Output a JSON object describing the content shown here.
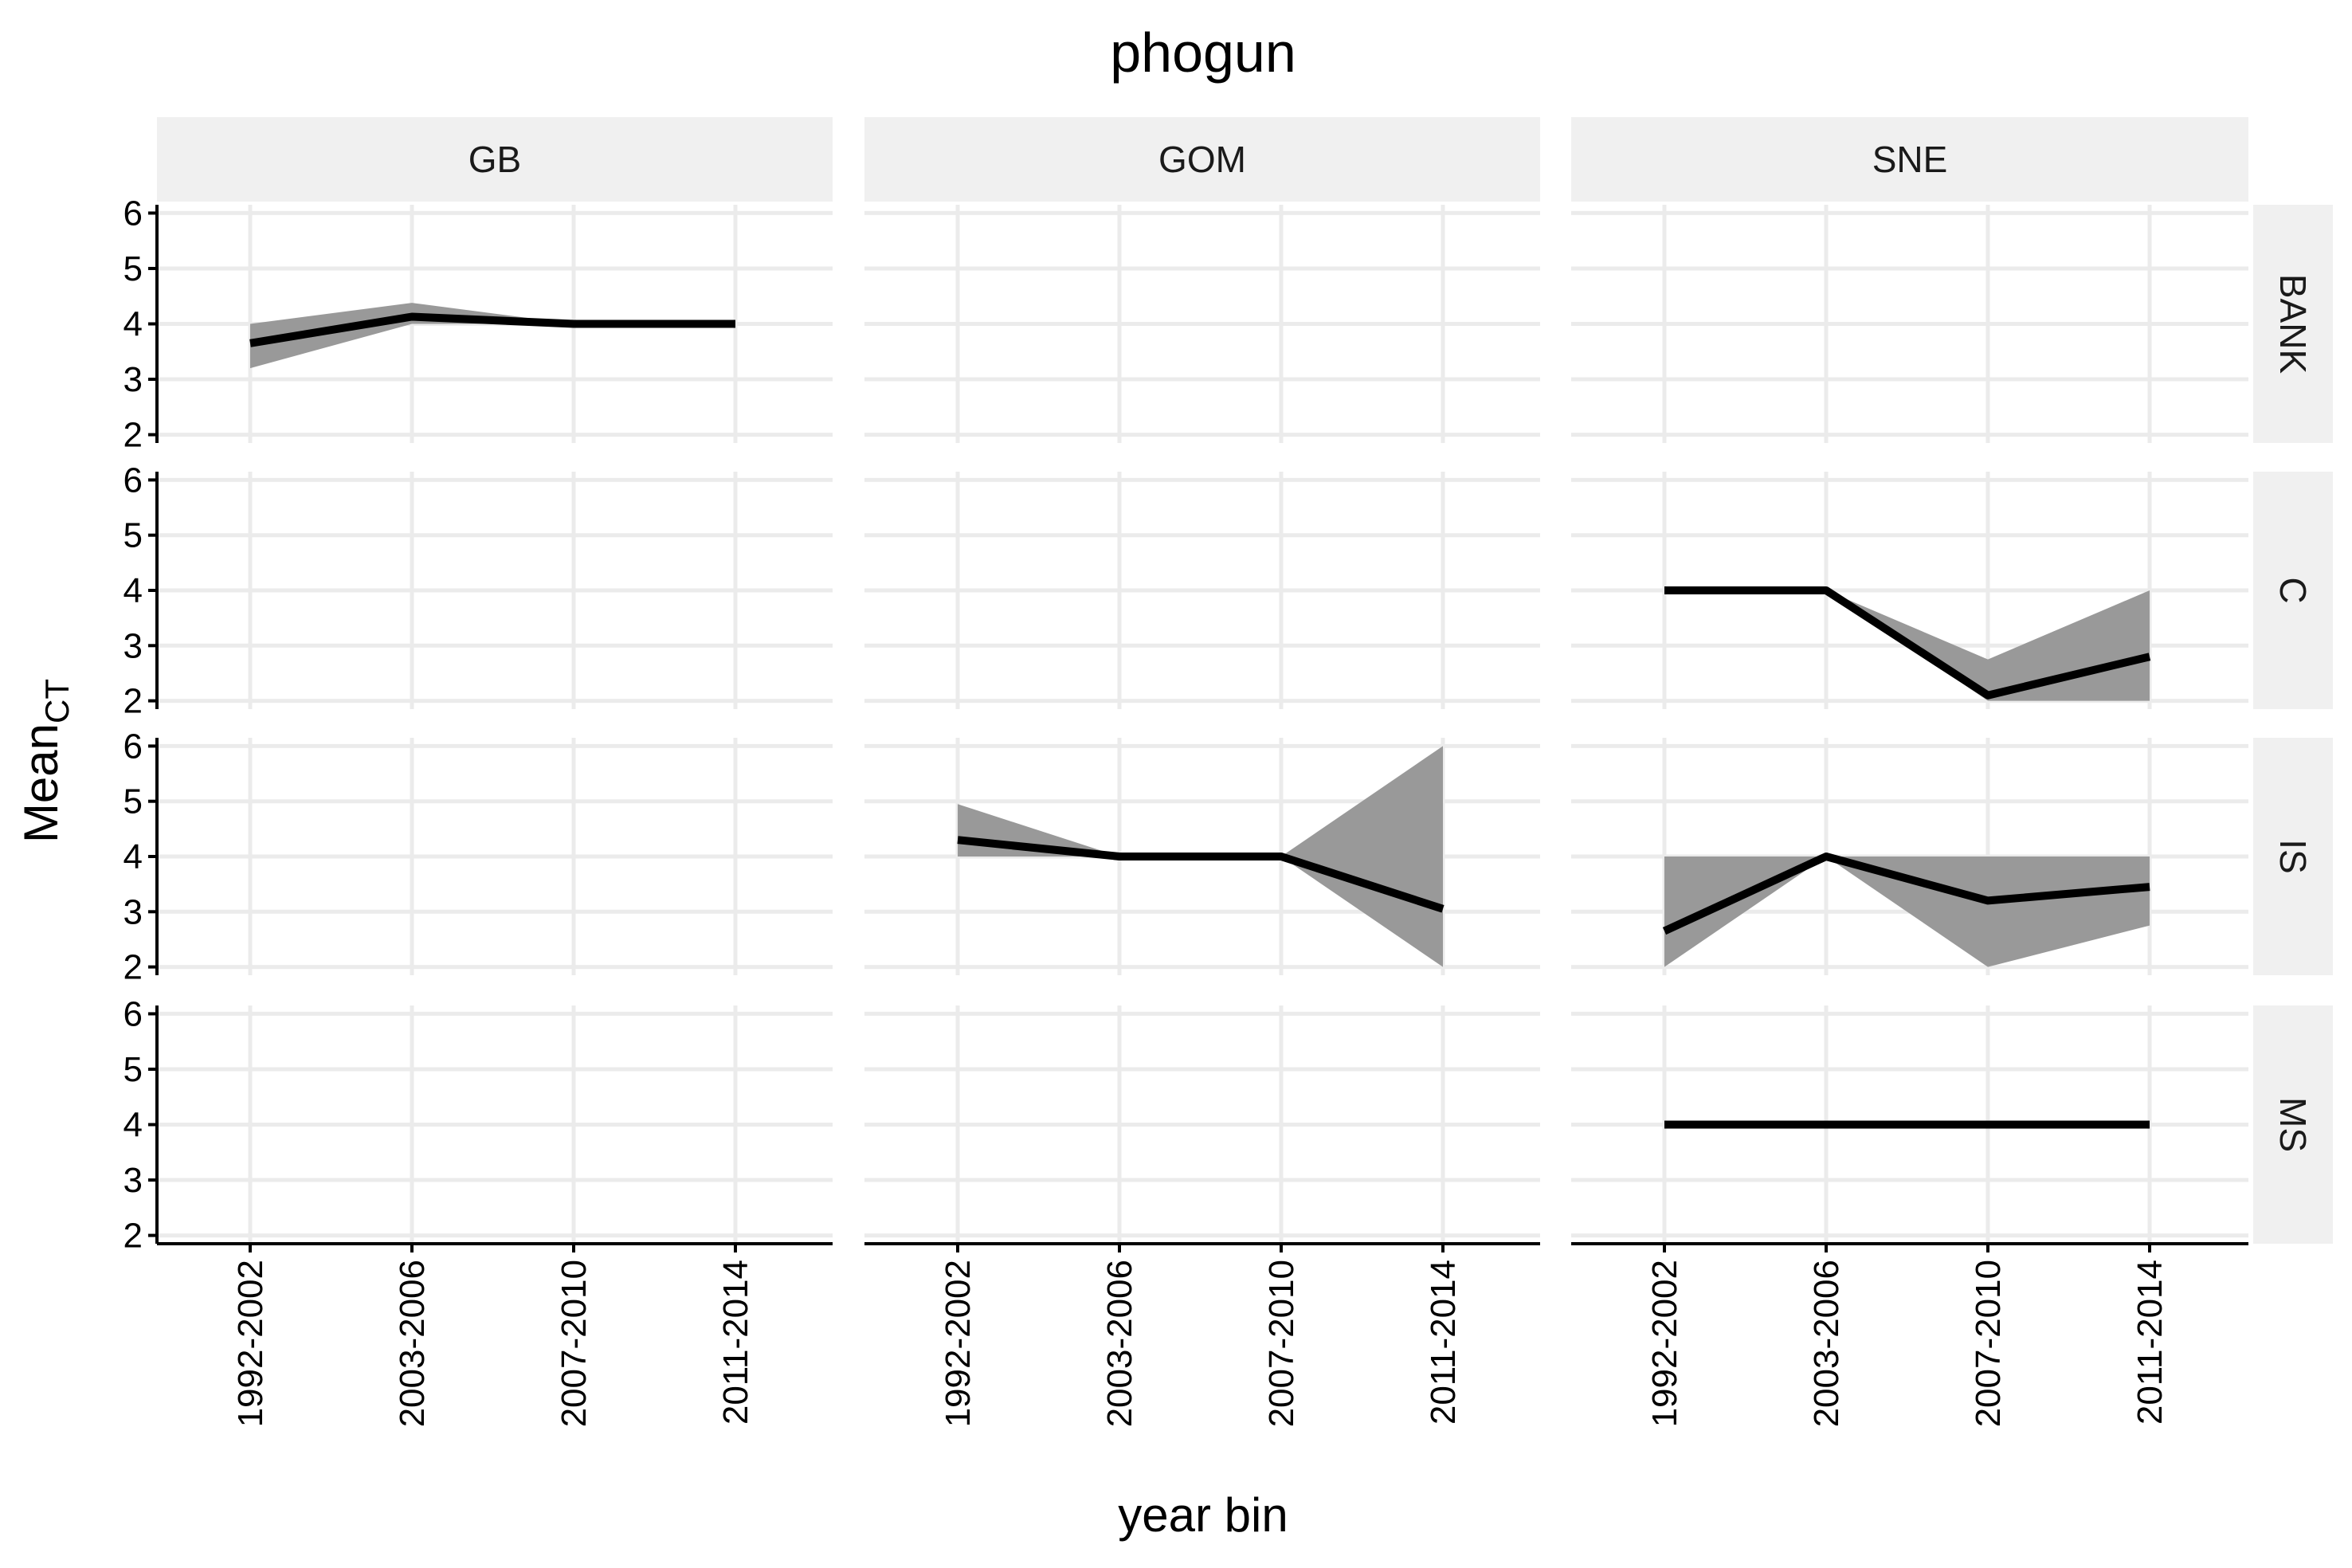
{
  "chart_data": {
    "type": "line",
    "title": "phogun",
    "xlabel": "year bin",
    "ylabel_main": "Mean",
    "ylabel_sub": "CT",
    "ylim": [
      1.85,
      6.15
    ],
    "yticks": [
      2,
      3,
      4,
      5,
      6
    ],
    "categories": [
      "1992-2002",
      "2003-2006",
      "2007-2010",
      "2011-2014"
    ],
    "columns": [
      "GB",
      "GOM",
      "SNE"
    ],
    "rows": [
      "BANK",
      "C",
      "IS",
      "MS"
    ],
    "band_color": "#999999",
    "line_color": "#000000",
    "strip_color": "#f0f0f0",
    "grid": true,
    "panels": [
      {
        "col": "GB",
        "row": "BANK",
        "mean": [
          3.65,
          4.13,
          4.0,
          4.0
        ],
        "lower": [
          3.2,
          4.0,
          4.0,
          4.0
        ],
        "upper": [
          4.0,
          4.38,
          4.0,
          4.0
        ]
      },
      {
        "col": "GOM",
        "row": "IS",
        "mean": [
          4.3,
          4.0,
          4.0,
          3.05
        ],
        "lower": [
          4.0,
          4.0,
          4.0,
          2.0
        ],
        "upper": [
          4.95,
          4.0,
          4.0,
          6.0
        ]
      },
      {
        "col": "SNE",
        "row": "C",
        "mean": [
          4.0,
          4.0,
          2.1,
          2.8
        ],
        "lower": [
          4.0,
          4.0,
          2.0,
          2.0
        ],
        "upper": [
          4.0,
          4.0,
          2.75,
          4.0
        ]
      },
      {
        "col": "SNE",
        "row": "IS",
        "mean": [
          2.65,
          4.0,
          3.2,
          3.45
        ],
        "lower": [
          2.0,
          4.0,
          2.0,
          2.75
        ],
        "upper": [
          4.0,
          4.0,
          4.0,
          4.0
        ]
      },
      {
        "col": "SNE",
        "row": "MS",
        "mean": [
          4.0,
          4.0,
          4.0,
          4.0
        ],
        "lower": [
          4.0,
          4.0,
          4.0,
          4.0
        ],
        "upper": [
          4.0,
          4.0,
          4.0,
          4.0
        ]
      }
    ]
  }
}
